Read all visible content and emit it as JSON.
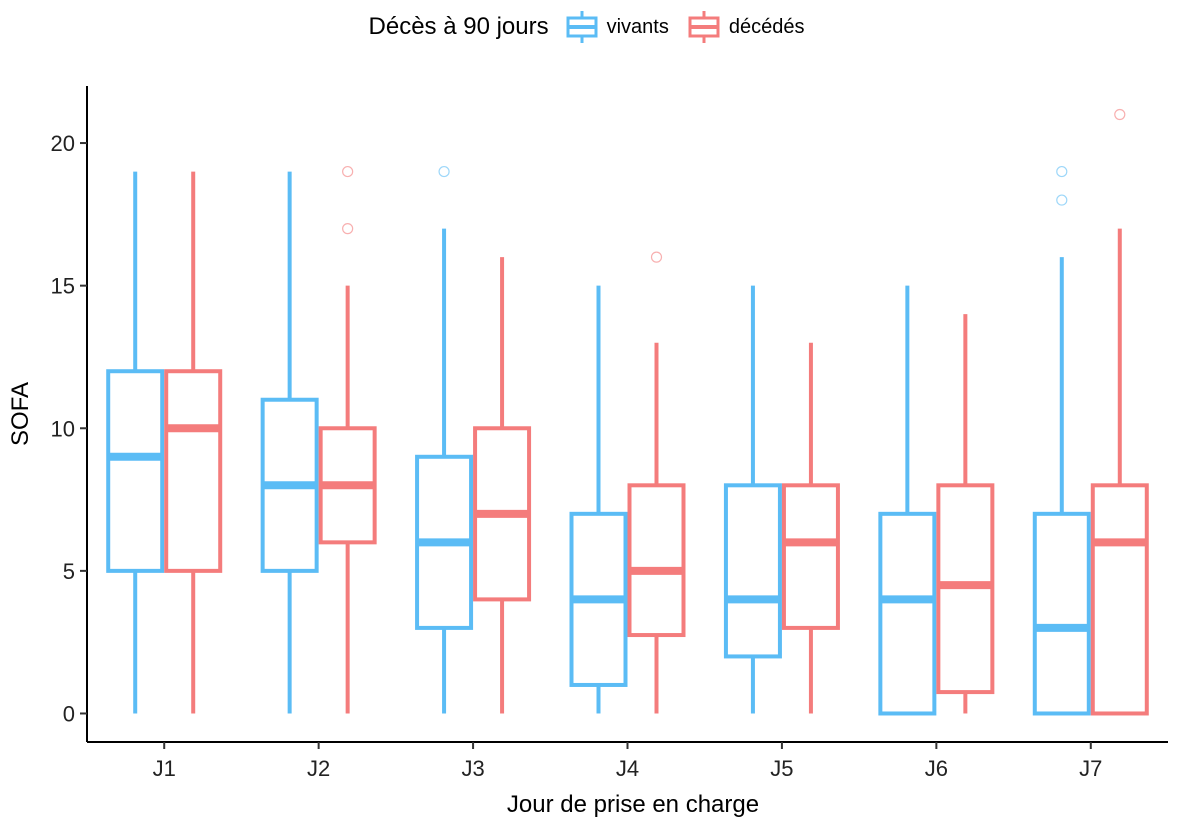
{
  "chart_data": {
    "type": "boxplot",
    "title": "",
    "xlabel": "Jour de prise en charge",
    "ylabel": "SOFA",
    "categories": [
      "J1",
      "J2",
      "J3",
      "J4",
      "J5",
      "J6",
      "J7"
    ],
    "ylim": [
      -1,
      22
    ],
    "yticks": [
      0,
      5,
      10,
      15,
      20
    ],
    "grid": false,
    "legend": {
      "title": "Décès à 90 jours",
      "position": "top"
    },
    "series": [
      {
        "name": "vivants",
        "color": "#5BBCF5",
        "boxes": [
          {
            "min": 0,
            "q1": 5,
            "median": 9,
            "q3": 12,
            "max": 19,
            "outliers": []
          },
          {
            "min": 0,
            "q1": 5,
            "median": 8,
            "q3": 11,
            "max": 19,
            "outliers": []
          },
          {
            "min": 0,
            "q1": 3,
            "median": 6,
            "q3": 9,
            "max": 17,
            "outliers": [
              19
            ]
          },
          {
            "min": 0,
            "q1": 1,
            "median": 4,
            "q3": 7,
            "max": 15,
            "outliers": []
          },
          {
            "min": 0,
            "q1": 2,
            "median": 4,
            "q3": 8,
            "max": 15,
            "outliers": []
          },
          {
            "min": 0,
            "q1": 0,
            "median": 4,
            "q3": 7,
            "max": 15,
            "outliers": []
          },
          {
            "min": 0,
            "q1": 0,
            "median": 3,
            "q3": 7,
            "max": 16,
            "outliers": [
              18,
              19
            ]
          }
        ]
      },
      {
        "name": "décédés",
        "color": "#F47C7C",
        "boxes": [
          {
            "min": 0,
            "q1": 5,
            "median": 10,
            "q3": 12,
            "max": 19,
            "outliers": []
          },
          {
            "min": 0,
            "q1": 6,
            "median": 8,
            "q3": 10,
            "max": 15,
            "outliers": [
              17,
              19
            ]
          },
          {
            "min": 0,
            "q1": 4,
            "median": 7,
            "q3": 10,
            "max": 16,
            "outliers": []
          },
          {
            "min": 0,
            "q1": 2.75,
            "median": 5,
            "q3": 8,
            "max": 13,
            "outliers": [
              16
            ]
          },
          {
            "min": 0,
            "q1": 3,
            "median": 6,
            "q3": 8,
            "max": 13,
            "outliers": []
          },
          {
            "min": 0,
            "q1": 0.75,
            "median": 4.5,
            "q3": 8,
            "max": 14,
            "outliers": []
          },
          {
            "min": 0,
            "q1": 0,
            "median": 6,
            "q3": 8,
            "max": 17,
            "outliers": [
              21
            ]
          }
        ]
      }
    ]
  }
}
